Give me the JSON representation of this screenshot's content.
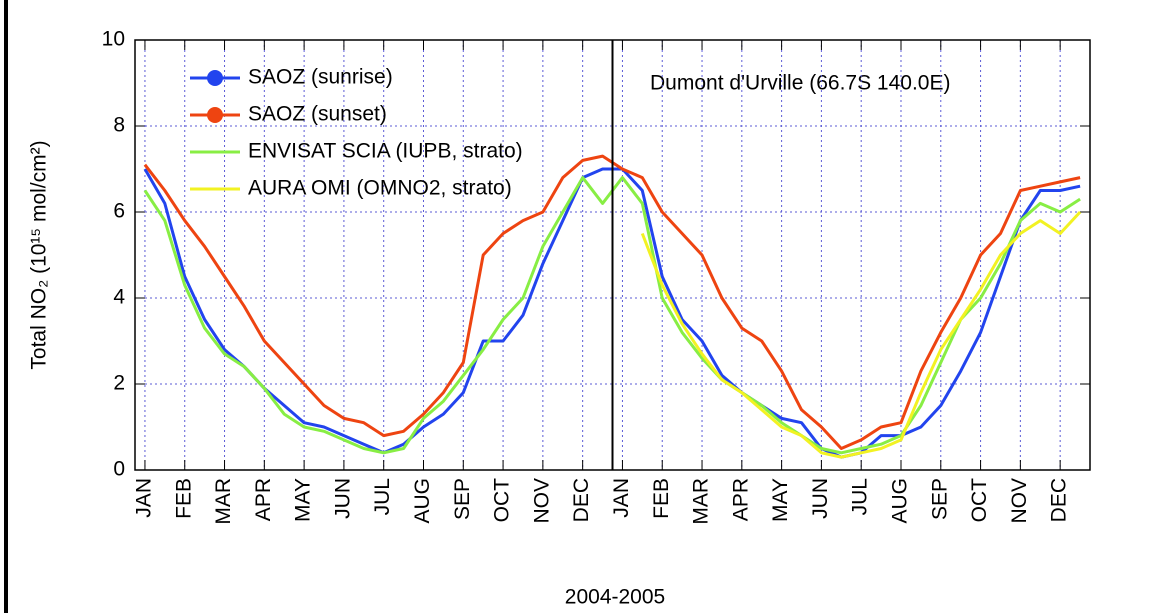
{
  "chart_data": {
    "type": "line",
    "xlabel": "2004-2005",
    "ylabel": "Total NO₂ (10¹⁵ mol/cm²)",
    "annotation": "Dumont d'Urville (66.7S 140.0E)",
    "categories": [
      "JAN",
      null,
      "FEB",
      null,
      "MAR",
      null,
      "APR",
      null,
      "MAY",
      null,
      "JUN",
      null,
      "JUL",
      null,
      "AUG",
      null,
      "SEP",
      null,
      "OCT",
      null,
      "NOV",
      null,
      "DEC",
      null,
      "JAN",
      null,
      "FEB",
      null,
      "MAR",
      null,
      "APR",
      null,
      "MAY",
      null,
      "JUN",
      null,
      "JUL",
      null,
      "AUG",
      null,
      "SEP",
      null,
      "OCT",
      null,
      "NOV",
      null,
      "DEC",
      null
    ],
    "ylim": [
      0,
      10
    ],
    "yticks": [
      0,
      2,
      4,
      6,
      8,
      10
    ],
    "grid": true,
    "legend": "upper left",
    "series": [
      {
        "name": "SAOZ (sunrise)",
        "color": "#2244ee",
        "marker": "o",
        "values": [
          7.0,
          6.2,
          4.5,
          3.5,
          2.8,
          2.4,
          1.9,
          1.5,
          1.1,
          1.0,
          0.8,
          0.6,
          0.4,
          0.6,
          1.0,
          1.3,
          1.8,
          3.0,
          3.0,
          3.6,
          4.8,
          5.8,
          6.8,
          7.0,
          7.0,
          6.5,
          4.5,
          3.5,
          3.0,
          2.2,
          1.8,
          1.5,
          1.2,
          1.1,
          0.5,
          0.3,
          0.4,
          0.8,
          0.8,
          1.0,
          1.5,
          2.3,
          3.2,
          4.5,
          5.8,
          6.5,
          6.5,
          6.6
        ]
      },
      {
        "name": "SAOZ (sunset)",
        "color": "#ee4411",
        "marker": "o",
        "values": [
          7.1,
          6.5,
          5.8,
          5.2,
          4.5,
          3.8,
          3.0,
          2.5,
          2.0,
          1.5,
          1.2,
          1.1,
          0.8,
          0.9,
          1.3,
          1.8,
          2.5,
          5.0,
          5.5,
          5.8,
          6.0,
          6.8,
          7.2,
          7.3,
          7.0,
          6.8,
          6.0,
          5.5,
          5.0,
          4.0,
          3.3,
          3.0,
          2.3,
          1.4,
          1.0,
          0.5,
          0.7,
          1.0,
          1.1,
          2.3,
          3.2,
          4.0,
          5.0,
          5.5,
          6.5,
          6.6,
          6.7,
          6.8
        ]
      },
      {
        "name": "ENVISAT SCIA (IUPB, strato)",
        "color": "#88ee44",
        "values": [
          6.5,
          5.8,
          4.3,
          3.3,
          2.7,
          2.4,
          1.9,
          1.3,
          1.0,
          0.9,
          0.7,
          0.5,
          0.4,
          0.5,
          1.2,
          1.6,
          2.2,
          2.8,
          3.5,
          4.0,
          5.2,
          6.0,
          6.8,
          6.2,
          6.8,
          6.2,
          4.0,
          3.2,
          2.6,
          2.1,
          1.8,
          1.5,
          1.1,
          0.8,
          0.5,
          0.4,
          0.5,
          0.6,
          0.8,
          1.5,
          2.5,
          3.5,
          4.0,
          4.8,
          5.8,
          6.2,
          6.0,
          6.3
        ]
      },
      {
        "name": "AURA OMI (OMNO2, strato)",
        "color": "#f2f222",
        "values": [
          null,
          null,
          null,
          null,
          null,
          null,
          null,
          null,
          null,
          null,
          null,
          null,
          null,
          null,
          null,
          null,
          null,
          null,
          null,
          null,
          null,
          null,
          null,
          null,
          null,
          5.5,
          4.3,
          3.4,
          2.7,
          2.1,
          1.8,
          1.4,
          1.0,
          0.8,
          0.4,
          0.3,
          0.4,
          0.5,
          0.7,
          1.8,
          2.8,
          3.5,
          4.2,
          5.0,
          5.5,
          5.8,
          5.5,
          6.0
        ]
      }
    ]
  }
}
